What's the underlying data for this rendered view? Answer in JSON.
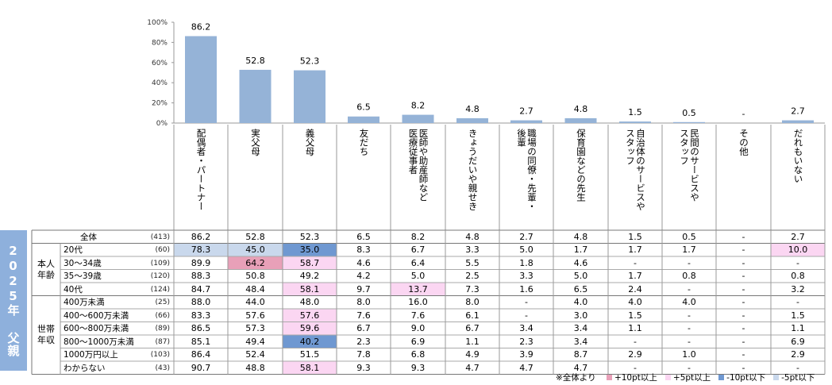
{
  "chart_data": {
    "type": "bar",
    "ylim": [
      0,
      100
    ],
    "y_ticks": [
      "0%",
      "20%",
      "40%",
      "60%",
      "80%",
      "100%"
    ],
    "categories": [
      "配偶者・パートナー",
      "実父母",
      "義父母",
      "友だち",
      "医師や助産師など\n医療従事者",
      "きょうだいや親せき",
      "職場の同僚・先輩・\n後輩",
      "保育園などの先生",
      "自治体のサービスや\nスタッフ",
      "民間のサービスや\nスタッフ",
      "その他",
      "だれもいない"
    ],
    "values": [
      86.2,
      52.8,
      52.3,
      6.5,
      8.2,
      4.8,
      2.7,
      4.8,
      1.5,
      0.5,
      null,
      2.7
    ],
    "value_labels": [
      "86.2",
      "52.8",
      "52.3",
      "6.5",
      "8.2",
      "4.8",
      "2.7",
      "4.8",
      "1.5",
      "0.5",
      "-",
      "2.7"
    ],
    "bar_color": "#95b3d7"
  },
  "table": {
    "year_label": "2025年 父親",
    "rows": [
      {
        "group": "",
        "label": "全体",
        "n": "(413)",
        "values": [
          "86.2",
          "52.8",
          "52.3",
          "6.5",
          "8.2",
          "4.8",
          "2.7",
          "4.8",
          "1.5",
          "0.5",
          "-",
          "2.7"
        ],
        "highlights": [
          "",
          "",
          "",
          "",
          "",
          "",
          "",
          "",
          "",
          "",
          "",
          ""
        ]
      },
      {
        "group": "本人\n年齢",
        "label": "20代",
        "n": "(60)",
        "values": [
          "78.3",
          "45.0",
          "35.0",
          "8.3",
          "6.7",
          "3.3",
          "5.0",
          "1.7",
          "1.7",
          "1.7",
          "-",
          "10.0"
        ],
        "highlights": [
          "light_blue",
          "light_blue",
          "blue",
          "",
          "",
          "",
          "",
          "",
          "",
          "",
          "",
          "light_pink"
        ]
      },
      {
        "group": "",
        "label": "30～34歳",
        "n": "(109)",
        "values": [
          "89.9",
          "64.2",
          "58.7",
          "4.6",
          "6.4",
          "5.5",
          "1.8",
          "4.6",
          "-",
          "-",
          "-",
          "-"
        ],
        "highlights": [
          "",
          "pink",
          "light_pink",
          "",
          "",
          "",
          "",
          "",
          "",
          "",
          "",
          ""
        ]
      },
      {
        "group": "",
        "label": "35～39歳",
        "n": "(120)",
        "values": [
          "88.3",
          "50.8",
          "49.2",
          "4.2",
          "5.0",
          "2.5",
          "3.3",
          "5.0",
          "1.7",
          "0.8",
          "-",
          "0.8"
        ],
        "highlights": [
          "",
          "",
          "",
          "",
          "",
          "",
          "",
          "",
          "",
          "",
          "",
          ""
        ]
      },
      {
        "group": "",
        "label": "40代",
        "n": "(124)",
        "values": [
          "84.7",
          "48.4",
          "58.1",
          "9.7",
          "13.7",
          "7.3",
          "1.6",
          "6.5",
          "2.4",
          "-",
          "-",
          "3.2"
        ],
        "highlights": [
          "",
          "",
          "light_pink",
          "",
          "light_pink",
          "",
          "",
          "",
          "",
          "",
          "",
          ""
        ]
      },
      {
        "group": "世帯\n年収",
        "label": "400万未満",
        "n": "(25)",
        "values": [
          "88.0",
          "44.0",
          "48.0",
          "8.0",
          "16.0",
          "8.0",
          "-",
          "4.0",
          "4.0",
          "4.0",
          "-",
          "-"
        ],
        "highlights": [
          "",
          "",
          "",
          "",
          "",
          "",
          "",
          "",
          "",
          "",
          "",
          ""
        ]
      },
      {
        "group": "",
        "label": "400～600万未満",
        "n": "(66)",
        "values": [
          "83.3",
          "57.6",
          "57.6",
          "7.6",
          "7.6",
          "6.1",
          "-",
          "3.0",
          "1.5",
          "-",
          "-",
          "1.5"
        ],
        "highlights": [
          "",
          "",
          "light_pink",
          "",
          "",
          "",
          "",
          "",
          "",
          "",
          "",
          ""
        ]
      },
      {
        "group": "",
        "label": "600～800万未満",
        "n": "(89)",
        "values": [
          "86.5",
          "57.3",
          "59.6",
          "6.7",
          "9.0",
          "6.7",
          "3.4",
          "3.4",
          "1.1",
          "-",
          "-",
          "1.1"
        ],
        "highlights": [
          "",
          "",
          "light_pink",
          "",
          "",
          "",
          "",
          "",
          "",
          "",
          "",
          ""
        ]
      },
      {
        "group": "",
        "label": "800～1000万未満",
        "n": "(87)",
        "values": [
          "85.1",
          "49.4",
          "40.2",
          "2.3",
          "6.9",
          "1.1",
          "2.3",
          "3.4",
          "-",
          "-",
          "-",
          "6.9"
        ],
        "highlights": [
          "",
          "",
          "blue",
          "",
          "",
          "",
          "",
          "",
          "",
          "",
          "",
          ""
        ]
      },
      {
        "group": "",
        "label": "1000万円以上",
        "n": "(103)",
        "values": [
          "86.4",
          "52.4",
          "51.5",
          "7.8",
          "6.8",
          "4.9",
          "3.9",
          "8.7",
          "2.9",
          "1.0",
          "-",
          "2.9"
        ],
        "highlights": [
          "",
          "",
          "",
          "",
          "",
          "",
          "",
          "",
          "",
          "",
          "",
          ""
        ]
      },
      {
        "group": "",
        "label": "わからない",
        "n": "(43)",
        "values": [
          "90.7",
          "48.8",
          "58.1",
          "9.3",
          "9.3",
          "4.7",
          "4.7",
          "4.7",
          "-",
          "-",
          "-",
          "-"
        ],
        "highlights": [
          "",
          "",
          "light_pink",
          "",
          "",
          "",
          "",
          "",
          "",
          "",
          "",
          ""
        ]
      }
    ]
  },
  "highlight_colors": {
    "pink": "#e8a0b8",
    "light_pink": "#fbd6f2",
    "blue": "#6f98d1",
    "light_blue": "#c9d8ec"
  },
  "legend": {
    "note": "※全体より",
    "items": [
      {
        "label": "+10pt以上",
        "color": "#e8a0b8"
      },
      {
        "label": "+5pt以上",
        "color": "#fbd6f2"
      },
      {
        "label": "-10pt以下",
        "color": "#6f98d1"
      },
      {
        "label": "-5pt以下",
        "color": "#c9d8ec"
      }
    ]
  }
}
